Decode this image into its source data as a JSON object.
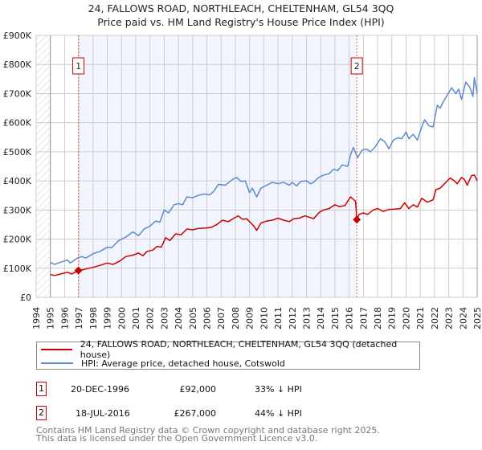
{
  "chart_data": {
    "type": "line",
    "title": "24, FALLOWS ROAD, NORTHLEACH, CHELTENHAM, GL54 3QQ",
    "subtitle": "Price paid vs. HM Land Registry's House Price Index (HPI)",
    "xlim": [
      1994,
      2025
    ],
    "ylim": [
      0,
      900000
    ],
    "x_ticks": [
      "1994",
      "1995",
      "1996",
      "1997",
      "1998",
      "1999",
      "2000",
      "2001",
      "2002",
      "2003",
      "2004",
      "2005",
      "2006",
      "2007",
      "2008",
      "2009",
      "2010",
      "2011",
      "2012",
      "2013",
      "2014",
      "2015",
      "2016",
      "2017",
      "2018",
      "2019",
      "2020",
      "2021",
      "2022",
      "2023",
      "2024",
      "2025"
    ],
    "y_ticks": [
      {
        "value": 0,
        "label": "£0"
      },
      {
        "value": 100000,
        "label": "£100K"
      },
      {
        "value": 200000,
        "label": "£200K"
      },
      {
        "value": 300000,
        "label": "£300K"
      },
      {
        "value": 400000,
        "label": "£400K"
      },
      {
        "value": 500000,
        "label": "£500K"
      },
      {
        "value": 600000,
        "label": "£600K"
      },
      {
        "value": 700000,
        "label": "£700K"
      },
      {
        "value": 800000,
        "label": "£800K"
      },
      {
        "value": 900000,
        "label": "£900K"
      }
    ],
    "grid": true,
    "series": [
      {
        "name": "24, FALLOWS ROAD, NORTHLEACH, CHELTENHAM, GL54 3QQ (detached house)",
        "color": "#cc0000",
        "points": [
          [
            1995,
            78
          ],
          [
            1995.3,
            75
          ],
          [
            1995.7,
            80
          ],
          [
            1996.2,
            86
          ],
          [
            1996.5,
            80
          ],
          [
            1996.97,
            92
          ],
          [
            1997.3,
            95
          ],
          [
            1997.7,
            100
          ],
          [
            1998,
            103
          ],
          [
            1998.5,
            110
          ],
          [
            1999,
            118
          ],
          [
            1999.4,
            113
          ],
          [
            1999.9,
            125
          ],
          [
            2000.3,
            140
          ],
          [
            2000.8,
            145
          ],
          [
            2001.2,
            152
          ],
          [
            2001.5,
            143
          ],
          [
            2001.8,
            158
          ],
          [
            2002.2,
            162
          ],
          [
            2002.5,
            175
          ],
          [
            2002.8,
            172
          ],
          [
            2003.1,
            205
          ],
          [
            2003.4,
            195
          ],
          [
            2003.8,
            218
          ],
          [
            2004.2,
            215
          ],
          [
            2004.6,
            235
          ],
          [
            2005,
            232
          ],
          [
            2005.4,
            237
          ],
          [
            2005.9,
            238
          ],
          [
            2006.3,
            240
          ],
          [
            2006.7,
            250
          ],
          [
            2007.1,
            265
          ],
          [
            2007.5,
            260
          ],
          [
            2007.9,
            272
          ],
          [
            2008.2,
            280
          ],
          [
            2008.5,
            268
          ],
          [
            2008.8,
            270
          ],
          [
            2009.1,
            255
          ],
          [
            2009.3,
            245
          ],
          [
            2009.5,
            230
          ],
          [
            2009.8,
            255
          ],
          [
            2010.2,
            262
          ],
          [
            2010.6,
            265
          ],
          [
            2011,
            272
          ],
          [
            2011.4,
            265
          ],
          [
            2011.8,
            260
          ],
          [
            2012.1,
            270
          ],
          [
            2012.5,
            272
          ],
          [
            2012.9,
            280
          ],
          [
            2013.2,
            275
          ],
          [
            2013.5,
            270
          ],
          [
            2013.9,
            292
          ],
          [
            2014.2,
            300
          ],
          [
            2014.6,
            305
          ],
          [
            2015,
            318
          ],
          [
            2015.3,
            312
          ],
          [
            2015.7,
            315
          ],
          [
            2016.1,
            345
          ],
          [
            2016.45,
            330
          ],
          [
            2016.54,
            267
          ],
          [
            2016.7,
            285
          ],
          [
            2017,
            290
          ],
          [
            2017.3,
            285
          ],
          [
            2017.7,
            300
          ],
          [
            2018,
            305
          ],
          [
            2018.4,
            295
          ],
          [
            2018.8,
            302
          ],
          [
            2019.2,
            303
          ],
          [
            2019.6,
            305
          ],
          [
            2019.9,
            325
          ],
          [
            2020.2,
            305
          ],
          [
            2020.5,
            318
          ],
          [
            2020.8,
            310
          ],
          [
            2021.1,
            340
          ],
          [
            2021.5,
            327
          ],
          [
            2021.9,
            335
          ],
          [
            2022.1,
            370
          ],
          [
            2022.4,
            375
          ],
          [
            2022.8,
            395
          ],
          [
            2023.1,
            410
          ],
          [
            2023.4,
            400
          ],
          [
            2023.6,
            390
          ],
          [
            2023.9,
            412
          ],
          [
            2024.1,
            405
          ],
          [
            2024.3,
            385
          ],
          [
            2024.6,
            418
          ],
          [
            2024.8,
            420
          ],
          [
            2025,
            400
          ]
        ]
      },
      {
        "name": "HPI: Average price, detached house, Cotswold",
        "color": "#5b8bd0",
        "points": [
          [
            1995,
            120
          ],
          [
            1995.3,
            113
          ],
          [
            1995.8,
            122
          ],
          [
            1996.2,
            128
          ],
          [
            1996.4,
            118
          ],
          [
            1996.9,
            135
          ],
          [
            1997.2,
            140
          ],
          [
            1997.5,
            135
          ],
          [
            1998,
            150
          ],
          [
            1998.5,
            158
          ],
          [
            1999,
            172
          ],
          [
            1999.3,
            170
          ],
          [
            1999.8,
            195
          ],
          [
            2000.3,
            207
          ],
          [
            2000.8,
            225
          ],
          [
            2001.2,
            212
          ],
          [
            2001.6,
            235
          ],
          [
            2002,
            245
          ],
          [
            2002.4,
            262
          ],
          [
            2002.7,
            258
          ],
          [
            2003,
            300
          ],
          [
            2003.3,
            290
          ],
          [
            2003.7,
            318
          ],
          [
            2004,
            322
          ],
          [
            2004.3,
            318
          ],
          [
            2004.6,
            345
          ],
          [
            2005,
            342
          ],
          [
            2005.4,
            350
          ],
          [
            2005.8,
            355
          ],
          [
            2006.2,
            352
          ],
          [
            2006.5,
            365
          ],
          [
            2006.8,
            388
          ],
          [
            2007.3,
            385
          ],
          [
            2007.8,
            405
          ],
          [
            2008.1,
            412
          ],
          [
            2008.4,
            398
          ],
          [
            2008.7,
            400
          ],
          [
            2009,
            360
          ],
          [
            2009.2,
            375
          ],
          [
            2009.5,
            345
          ],
          [
            2009.8,
            375
          ],
          [
            2010.2,
            385
          ],
          [
            2010.6,
            395
          ],
          [
            2011,
            390
          ],
          [
            2011.4,
            395
          ],
          [
            2011.8,
            385
          ],
          [
            2012,
            395
          ],
          [
            2012.3,
            383
          ],
          [
            2012.6,
            398
          ],
          [
            2013,
            400
          ],
          [
            2013.3,
            390
          ],
          [
            2013.5,
            395
          ],
          [
            2013.8,
            410
          ],
          [
            2014.2,
            420
          ],
          [
            2014.6,
            425
          ],
          [
            2014.9,
            440
          ],
          [
            2015.2,
            435
          ],
          [
            2015.5,
            455
          ],
          [
            2015.9,
            450
          ],
          [
            2016.1,
            490
          ],
          [
            2016.3,
            515
          ],
          [
            2016.6,
            480
          ],
          [
            2016.9,
            505
          ],
          [
            2017.2,
            510
          ],
          [
            2017.5,
            500
          ],
          [
            2017.8,
            515
          ],
          [
            2018.2,
            545
          ],
          [
            2018.5,
            535
          ],
          [
            2018.8,
            510
          ],
          [
            2019.1,
            540
          ],
          [
            2019.4,
            548
          ],
          [
            2019.7,
            545
          ],
          [
            2020,
            568
          ],
          [
            2020.2,
            545
          ],
          [
            2020.5,
            560
          ],
          [
            2020.8,
            540
          ],
          [
            2021.1,
            585
          ],
          [
            2021.3,
            610
          ],
          [
            2021.6,
            590
          ],
          [
            2021.9,
            585
          ],
          [
            2022.2,
            660
          ],
          [
            2022.4,
            650
          ],
          [
            2022.6,
            670
          ],
          [
            2022.9,
            695
          ],
          [
            2023.2,
            720
          ],
          [
            2023.5,
            700
          ],
          [
            2023.7,
            715
          ],
          [
            2023.9,
            680
          ],
          [
            2024.2,
            740
          ],
          [
            2024.5,
            720
          ],
          [
            2024.7,
            690
          ],
          [
            2024.8,
            755
          ],
          [
            2025,
            700
          ]
        ]
      }
    ],
    "value_unit": "thousands GBP",
    "sales": [
      {
        "id": "1",
        "year": 1996.97,
        "value": 92
      },
      {
        "id": "2",
        "year": 2016.54,
        "value": 267
      }
    ],
    "shaded_range": [
      1996.97,
      2016.54
    ],
    "hatched_range": [
      1994,
      1995
    ]
  },
  "legend": {
    "property": "24, FALLOWS ROAD, NORTHLEACH, CHELTENHAM, GL54 3QQ (detached house)",
    "hpi": "HPI: Average price, detached house, Cotswold"
  },
  "transactions": [
    {
      "id": "1",
      "date": "20-DEC-1996",
      "price": "£92,000",
      "delta": "33% ↓ HPI"
    },
    {
      "id": "2",
      "date": "18-JUL-2016",
      "price": "£267,000",
      "delta": "44% ↓ HPI"
    }
  ],
  "footer": {
    "line1": "Contains HM Land Registry data © Crown copyright and database right 2025.",
    "line2": "This data is licensed under the Open Government Licence v3.0."
  }
}
